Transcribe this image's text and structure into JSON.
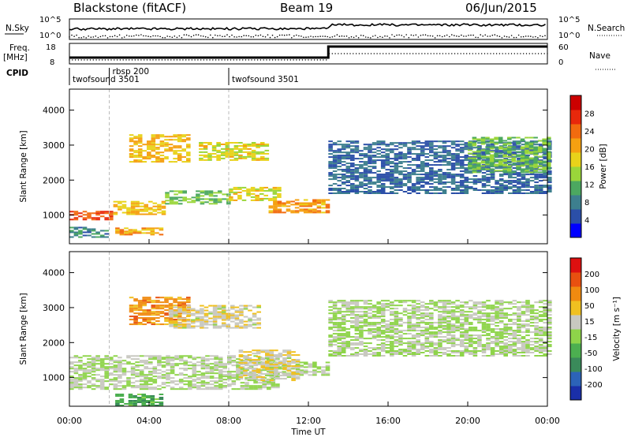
{
  "header": {
    "station": "Blackstone (fitACF)",
    "beam": "Beam 19",
    "date": "06/Jun/2015"
  },
  "top_panels": {
    "nsky_label": "N.Sky",
    "nsky_ticks": [
      "10^5",
      "10^0"
    ],
    "nsearch_label": "N.Search",
    "nsearch_ticks": [
      "10^5",
      "10^0"
    ],
    "freq_label": "Freq.",
    "freq_unit": "[MHz]",
    "freq_ticks": [
      "18",
      "8"
    ],
    "nave_label": "Nave",
    "nave_ticks": [
      "60",
      "0"
    ],
    "cpid_label": "CPID",
    "cpid_entries": [
      {
        "name": "twofsound 3501",
        "start_hour": 0.0
      },
      {
        "name": "rbsp 200",
        "start_hour": 2.0
      },
      {
        "name": "twofsound 3501",
        "start_hour": 8.0
      }
    ]
  },
  "x_axis": {
    "label": "Time UT",
    "ticks": [
      "00:00",
      "04:00",
      "08:00",
      "12:00",
      "16:00",
      "20:00",
      "00:00"
    ],
    "range_hours": [
      0,
      24
    ]
  },
  "chart_data": [
    {
      "type": "heatmap",
      "name": "power",
      "ylabel": "Slant Range [km]",
      "ylim": [
        180,
        4600
      ],
      "yticks": [
        "1000",
        "2000",
        "3000",
        "4000"
      ],
      "colorbar": {
        "label": "Power [dB]",
        "ticks": [
          "4",
          "8",
          "12",
          "16",
          "20",
          "24",
          "28"
        ],
        "colors": [
          "#0000ff",
          "#2b4fa8",
          "#3d7f8e",
          "#4ca860",
          "#9ad63a",
          "#e8d21a",
          "#f5a011",
          "#f26b0f",
          "#e8280b",
          "#cc0000"
        ]
      },
      "regions": [
        {
          "t0": 0.0,
          "t1": 2.2,
          "r0": 850,
          "r1": 1120,
          "value": 26
        },
        {
          "t0": 2.2,
          "t1": 4.8,
          "r0": 1000,
          "r1": 1400,
          "value": 20
        },
        {
          "t0": 4.8,
          "t1": 8.0,
          "r0": 1300,
          "r1": 1700,
          "value": 14
        },
        {
          "t0": 8.0,
          "t1": 10.5,
          "r0": 1400,
          "r1": 1800,
          "value": 18
        },
        {
          "t0": 10.0,
          "t1": 13.0,
          "r0": 1050,
          "r1": 1450,
          "value": 22
        },
        {
          "t0": 3.0,
          "t1": 6.0,
          "r0": 2500,
          "r1": 3300,
          "value": 20
        },
        {
          "t0": 6.5,
          "t1": 10.0,
          "r0": 2550,
          "r1": 3050,
          "value": 18
        },
        {
          "t0": 0.0,
          "t1": 1.8,
          "r0": 350,
          "r1": 650,
          "value": 10
        },
        {
          "t0": 2.3,
          "t1": 4.6,
          "r0": 420,
          "r1": 620,
          "value": 22
        },
        {
          "t0": 13.0,
          "t1": 24.0,
          "r0": 1600,
          "r1": 3100,
          "value": 8
        },
        {
          "t0": 20.0,
          "t1": 24.0,
          "r0": 2200,
          "r1": 3200,
          "value": 14
        }
      ]
    },
    {
      "type": "heatmap",
      "name": "velocity",
      "ylabel": "Slant Range [km]",
      "ylim": [
        180,
        4600
      ],
      "yticks": [
        "1000",
        "2000",
        "3000",
        "4000"
      ],
      "colorbar": {
        "label": "Velocity [m s⁻¹]",
        "ticks": [
          "200",
          "100",
          "50",
          "15",
          "-15",
          "-50",
          "-100",
          "-200"
        ],
        "colors": [
          "#1a2fa8",
          "#2c63b8",
          "#3a8a5a",
          "#4caf50",
          "#8ed44a",
          "#c8c8c0",
          "#f0c020",
          "#f08a10",
          "#e85010",
          "#dd1010"
        ]
      },
      "regions": [
        {
          "t0": 0.0,
          "t1": 10.5,
          "r0": 650,
          "r1": 1600,
          "value": 0
        },
        {
          "t0": 10.0,
          "t1": 13.0,
          "r0": 1050,
          "r1": 1450,
          "value": 0
        },
        {
          "t0": 8.5,
          "t1": 11.5,
          "r0": 900,
          "r1": 1800,
          "value": 40
        },
        {
          "t0": 3.0,
          "t1": 6.0,
          "r0": 2500,
          "r1": 3300,
          "value": 120
        },
        {
          "t0": 5.0,
          "t1": 9.5,
          "r0": 2400,
          "r1": 3050,
          "value": 40
        },
        {
          "t0": 13.0,
          "t1": 24.0,
          "r0": 1600,
          "r1": 3200,
          "value": 0
        },
        {
          "t0": 2.3,
          "t1": 4.6,
          "r0": 180,
          "r1": 520,
          "value": -80
        }
      ]
    }
  ]
}
